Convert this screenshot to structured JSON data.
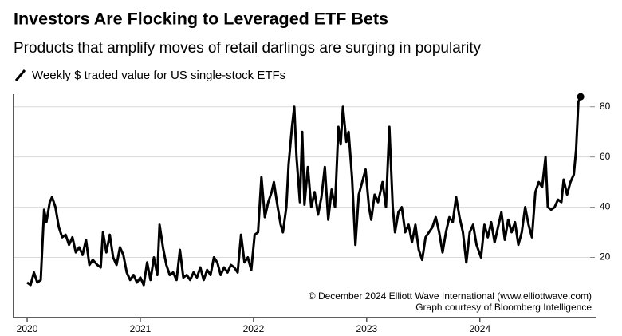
{
  "chart_data": {
    "type": "line",
    "title": "Investors Are Flocking to Leveraged ETF Bets",
    "subtitle": "Products that amplify moves of retail darlings are surging in popularity",
    "annotations": [
      "© December 2024 Elliott Wave International (www.elliottwave.com)",
      "Graph courtesy of Bloomberg Intelligence"
    ],
    "x": [
      2020.0,
      2020.03,
      2020.06,
      2020.09,
      2020.12,
      2020.15,
      2020.17,
      2020.2,
      2020.22,
      2020.25,
      2020.28,
      2020.31,
      2020.34,
      2020.37,
      2020.4,
      2020.43,
      2020.46,
      2020.49,
      2020.52,
      2020.55,
      2020.58,
      2020.62,
      2020.65,
      2020.67,
      2020.7,
      2020.73,
      2020.76,
      2020.79,
      2020.82,
      2020.85,
      2020.88,
      2020.91,
      2020.94,
      2020.97,
      2021.0,
      2021.03,
      2021.06,
      2021.09,
      2021.12,
      2021.15,
      2021.17,
      2021.2,
      2021.23,
      2021.26,
      2021.29,
      2021.32,
      2021.35,
      2021.38,
      2021.41,
      2021.44,
      2021.47,
      2021.5,
      2021.53,
      2021.56,
      2021.59,
      2021.62,
      2021.65,
      2021.68,
      2021.71,
      2021.74,
      2021.77,
      2021.8,
      2021.83,
      2021.86,
      2021.89,
      2021.92,
      2021.95,
      2021.98,
      2022.01,
      2022.04,
      2022.07,
      2022.1,
      2022.13,
      2022.16,
      2022.18,
      2022.21,
      2022.24,
      2022.26,
      2022.29,
      2022.31,
      2022.34,
      2022.36,
      2022.38,
      2022.41,
      2022.43,
      2022.45,
      2022.48,
      2022.51,
      2022.54,
      2022.57,
      2022.6,
      2022.63,
      2022.66,
      2022.69,
      2022.72,
      2022.75,
      2022.77,
      2022.79,
      2022.82,
      2022.84,
      2022.87,
      2022.9,
      2022.93,
      2022.96,
      2022.99,
      2023.02,
      2023.04,
      2023.07,
      2023.1,
      2023.14,
      2023.17,
      2023.2,
      2023.23,
      2023.25,
      2023.28,
      2023.31,
      2023.34,
      2023.37,
      2023.4,
      2023.43,
      2023.46,
      2023.49,
      2023.52,
      2023.55,
      2023.58,
      2023.61,
      2023.64,
      2023.67,
      2023.7,
      2023.73,
      2023.76,
      2023.79,
      2023.82,
      2023.85,
      2023.88,
      2023.91,
      2023.94,
      2023.97,
      2024.01,
      2024.04,
      2024.07,
      2024.1,
      2024.13,
      2024.16,
      2024.19,
      2024.22,
      2024.25,
      2024.28,
      2024.31,
      2024.34,
      2024.37,
      2024.4,
      2024.43,
      2024.46,
      2024.49,
      2024.52,
      2024.55,
      2024.58,
      2024.6,
      2024.63,
      2024.66,
      2024.69,
      2024.72,
      2024.74,
      2024.77,
      2024.8,
      2024.83,
      2024.85,
      2024.87,
      2024.89
    ],
    "series": [
      {
        "name": "Weekly $ traded value for US single-stock ETFs",
        "color": "#000000",
        "values": [
          10,
          9,
          14,
          10,
          11,
          39,
          34,
          42,
          44,
          40,
          32,
          28,
          29,
          25,
          28,
          22,
          24,
          21,
          27,
          17,
          19,
          17,
          16,
          30,
          22,
          29,
          20,
          17,
          24,
          21,
          14,
          11,
          13,
          10,
          12,
          9,
          18,
          11,
          20,
          13,
          33,
          24,
          17,
          13,
          14,
          11,
          23,
          12,
          13,
          11,
          14,
          12,
          16,
          11,
          15,
          13,
          20,
          18,
          13,
          16,
          14,
          17,
          16,
          14,
          29,
          18,
          20,
          15,
          29,
          30,
          52,
          36,
          42,
          46,
          50,
          41,
          33,
          30,
          40,
          57,
          72,
          80,
          60,
          42,
          70,
          41,
          56,
          40,
          46,
          37,
          44,
          56,
          35,
          47,
          40,
          72,
          65,
          80,
          66,
          70,
          52,
          25,
          45,
          50,
          55,
          40,
          35,
          45,
          42,
          50,
          40,
          72,
          40,
          30,
          38,
          40,
          30,
          33,
          26,
          33,
          23,
          19,
          28,
          30,
          32,
          36,
          30,
          22,
          30,
          36,
          34,
          44,
          36,
          30,
          18,
          30,
          33,
          25,
          20,
          33,
          28,
          34,
          26,
          32,
          38,
          27,
          35,
          30,
          34,
          25,
          30,
          40,
          33,
          28,
          46,
          50,
          48,
          60,
          40,
          39,
          40,
          43,
          42,
          51,
          45,
          50,
          53,
          63,
          82,
          84
        ]
      }
    ],
    "xlim": [
      2019.88,
      2025.03
    ],
    "xticks": [
      2020,
      2021,
      2022,
      2023,
      2024
    ],
    "ylim": [
      -4,
      85
    ],
    "yticks": [
      20,
      40,
      60,
      80
    ],
    "grid": true,
    "y_axis_side": "right"
  }
}
